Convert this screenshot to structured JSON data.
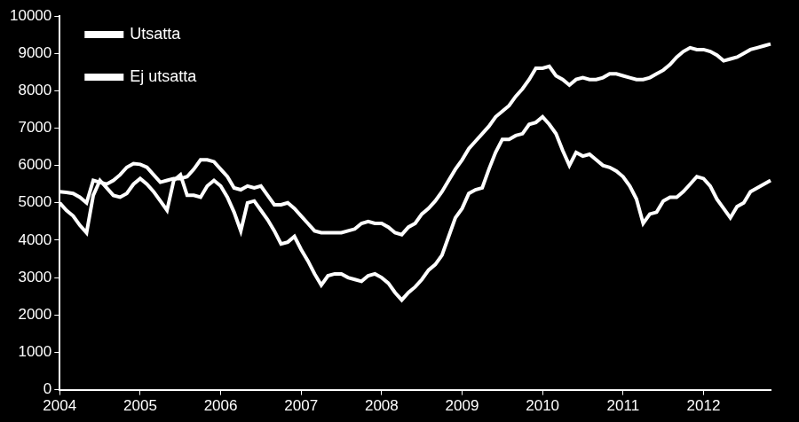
{
  "chart_data": {
    "type": "line",
    "categories": [
      "2004",
      null,
      null,
      null,
      null,
      null,
      null,
      null,
      null,
      null,
      null,
      null,
      "2005",
      null,
      null,
      null,
      null,
      null,
      null,
      null,
      null,
      null,
      null,
      null,
      "2006",
      null,
      null,
      null,
      null,
      null,
      null,
      null,
      null,
      null,
      null,
      null,
      "2007",
      null,
      null,
      null,
      null,
      null,
      null,
      null,
      null,
      null,
      null,
      null,
      "2008",
      null,
      null,
      null,
      null,
      null,
      null,
      null,
      null,
      null,
      null,
      null,
      "2009",
      null,
      null,
      null,
      null,
      null,
      null,
      null,
      null,
      null,
      null,
      null,
      "2010",
      null,
      null,
      null,
      null,
      null,
      null,
      null,
      null,
      null,
      null,
      null,
      "2011",
      null,
      null,
      null,
      null,
      null,
      null,
      null,
      null,
      null,
      null,
      null,
      "2012",
      null,
      null,
      null,
      null,
      null,
      null,
      null,
      null,
      null,
      null
    ],
    "series": [
      {
        "name": "Utsatta",
        "color": "#ffffff",
        "values": [
          5000,
          4800,
          4650,
          4400,
          4200,
          5200,
          5600,
          5400,
          5200,
          5150,
          5250,
          5500,
          5650,
          5500,
          5300,
          5050,
          4800,
          5600,
          5750,
          5200,
          5200,
          5150,
          5450,
          5600,
          5450,
          5150,
          4750,
          4250,
          5000,
          5050,
          4800,
          4550,
          4250,
          3900,
          3950,
          4100,
          3750,
          3450,
          3100,
          2800,
          3050,
          3100,
          3100,
          3000,
          2950,
          2900,
          3050,
          3100,
          3000,
          2850,
          2600,
          2400,
          2600,
          2750,
          2950,
          3200,
          3350,
          3600,
          4100,
          4600,
          4850,
          5250,
          5350,
          5400,
          5900,
          6350,
          6700,
          6700,
          6800,
          6850,
          7100,
          7150,
          7300,
          7100,
          6850,
          6400,
          6000,
          6350,
          6250,
          6300,
          6150,
          6000,
          5950,
          5850,
          5700,
          5450,
          5100,
          4450,
          4700,
          4750,
          5050,
          5150,
          5150,
          5300,
          5500,
          5700,
          5650,
          5450,
          5100,
          4850,
          4600,
          4900,
          5000,
          5300,
          5400,
          5500,
          5600
        ]
      },
      {
        "name": "Ej utsatta",
        "color": "#ffffff",
        "values": [
          5300,
          5280,
          5250,
          5150,
          5000,
          5600,
          5550,
          5500,
          5600,
          5750,
          5950,
          6050,
          6030,
          5950,
          5750,
          5550,
          5600,
          5650,
          5650,
          5700,
          5900,
          6150,
          6150,
          6100,
          5900,
          5700,
          5400,
          5350,
          5450,
          5400,
          5450,
          5200,
          4950,
          4950,
          5000,
          4850,
          4650,
          4450,
          4250,
          4200,
          4200,
          4200,
          4200,
          4250,
          4300,
          4450,
          4500,
          4450,
          4450,
          4350,
          4200,
          4150,
          4350,
          4450,
          4700,
          4850,
          5050,
          5300,
          5600,
          5900,
          6150,
          6450,
          6650,
          6850,
          7050,
          7300,
          7450,
          7600,
          7850,
          8050,
          8300,
          8600,
          8600,
          8650,
          8400,
          8300,
          8150,
          8300,
          8350,
          8300,
          8300,
          8350,
          8450,
          8450,
          8400,
          8350,
          8300,
          8300,
          8350,
          8450,
          8550,
          8700,
          8900,
          9050,
          9150,
          9100,
          9100,
          9050,
          8950,
          8800,
          8850,
          8900,
          9000,
          9100,
          9150,
          9200,
          9250
        ]
      }
    ],
    "ylim": [
      0,
      10000
    ],
    "yticks": [
      0,
      1000,
      2000,
      3000,
      4000,
      5000,
      6000,
      7000,
      8000,
      9000,
      10000
    ],
    "grid": false,
    "legend": "upper left"
  }
}
